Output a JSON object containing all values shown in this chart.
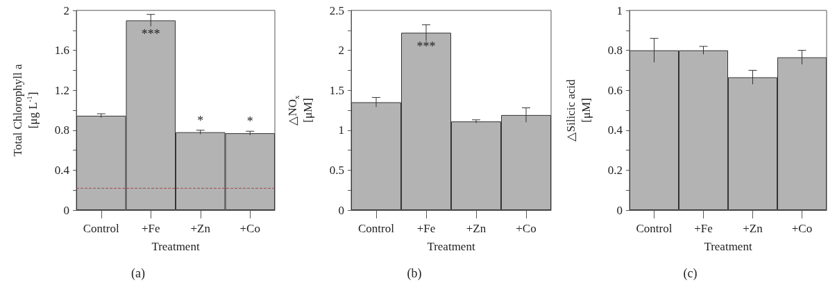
{
  "chart_data": [
    {
      "type": "bar",
      "categories": [
        "Control",
        "+Fe",
        "+Zn",
        "+Co"
      ],
      "values": [
        0.945,
        1.9,
        0.78,
        0.77
      ],
      "errors": [
        0.02,
        0.06,
        0.02,
        0.02
      ],
      "color": "#b3b3b3",
      "xlabel": "Treatment",
      "ylabel": "Total Chlorophyll a\n[μg L$^{-1}$]",
      "ylim": [
        0,
        2
      ],
      "yticks": [
        0,
        {
          "value": 0.2,
          "label": null
        },
        0.4,
        {
          "value": 0.6,
          "label": null
        },
        0.8,
        {
          "value": 1.0,
          "label": null
        },
        1.2,
        {
          "value": 1.4,
          "label": null
        },
        1.6,
        {
          "value": 1.8,
          "label": null
        },
        2
      ],
      "grid": false,
      "ref_lines": [
        {
          "axis": "y",
          "value": 0.22,
          "color": "#a0504a",
          "line_style": "dashed"
        }
      ],
      "annotations": [
        {
          "text": "***",
          "x": "+Fe",
          "y": 1.9
        },
        {
          "text": "*",
          "x": "+Zn",
          "y": 0.78
        },
        {
          "text": "*",
          "x": "+Co",
          "y": 0.77
        },
        "(a)"
      ]
    },
    {
      "type": "bar",
      "categories": [
        "Control",
        "+Fe",
        "+Zn",
        "+Co"
      ],
      "values": [
        1.35,
        2.22,
        1.11,
        1.19
      ],
      "errors": [
        0.06,
        0.1,
        0.02,
        0.09
      ],
      "color": "#b3b3b3",
      "xlabel": "Treatment",
      "ylabel": "△NO$_{x}$\n[μM]",
      "ylim": [
        0,
        2.5
      ],
      "yticks": [
        0,
        {
          "value": 0.25,
          "label": null
        },
        0.5,
        {
          "value": 0.75,
          "label": null
        },
        1,
        {
          "value": 1.25,
          "label": null
        },
        1.5,
        {
          "value": 1.75,
          "label": null
        },
        2,
        {
          "value": 2.25,
          "label": null
        },
        2.5
      ],
      "grid": false,
      "annotations": [
        {
          "text": "***",
          "x": "+Fe",
          "y": 2.22
        },
        "(b)"
      ]
    },
    {
      "type": "bar",
      "categories": [
        "Control",
        "+Fe",
        "+Zn",
        "+Co"
      ],
      "values": [
        0.8,
        0.8,
        0.665,
        0.765
      ],
      "errors": [
        0.06,
        0.02,
        0.035,
        0.035
      ],
      "color": "#b3b3b3",
      "xlabel": "Treatment",
      "ylabel": "△Silicic acid\n[μM]",
      "ylim": [
        0,
        1
      ],
      "yticks": [
        0,
        {
          "value": 0.1,
          "label": null
        },
        0.2,
        {
          "value": 0.3,
          "label": null
        },
        0.4,
        {
          "value": 0.5,
          "label": null
        },
        0.6,
        {
          "value": 0.7,
          "label": null
        },
        0.8,
        {
          "value": 0.9,
          "label": null
        },
        1
      ],
      "grid": false,
      "annotations": [
        "(c)"
      ]
    }
  ]
}
